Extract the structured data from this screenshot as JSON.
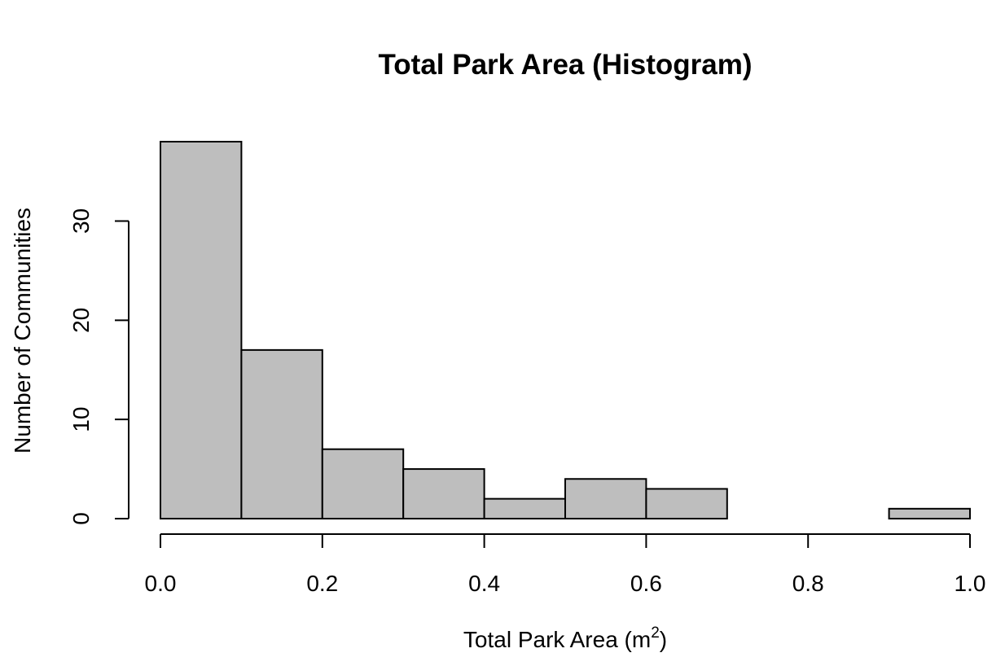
{
  "chart_data": {
    "type": "bar",
    "title": "Total Park Area (Histogram)",
    "xlabel": "Total Park Area (m",
    "xlabel_sup": "2",
    "xlabel_close": ")",
    "ylabel": "Number of Communities",
    "bins": [
      [
        0.0,
        0.1
      ],
      [
        0.1,
        0.2
      ],
      [
        0.2,
        0.3
      ],
      [
        0.3,
        0.4
      ],
      [
        0.4,
        0.5
      ],
      [
        0.5,
        0.6
      ],
      [
        0.6,
        0.7
      ],
      [
        0.7,
        0.8
      ],
      [
        0.8,
        0.9
      ],
      [
        0.9,
        1.0
      ]
    ],
    "values": [
      38,
      17,
      7,
      5,
      2,
      4,
      3,
      0,
      0,
      1
    ],
    "xticks": [
      0.0,
      0.2,
      0.4,
      0.6,
      0.8,
      1.0
    ],
    "xtick_labels": [
      "0.0",
      "0.2",
      "0.4",
      "0.6",
      "0.8",
      "1.0"
    ],
    "yticks": [
      0,
      10,
      20,
      30
    ],
    "ytick_labels": [
      "0",
      "10",
      "20",
      "30"
    ],
    "xlim": [
      0,
      1
    ],
    "ylim": [
      0,
      38
    ],
    "bar_color": "#bebebe",
    "edge_color": "#000000",
    "grid": false,
    "legend": "none"
  }
}
